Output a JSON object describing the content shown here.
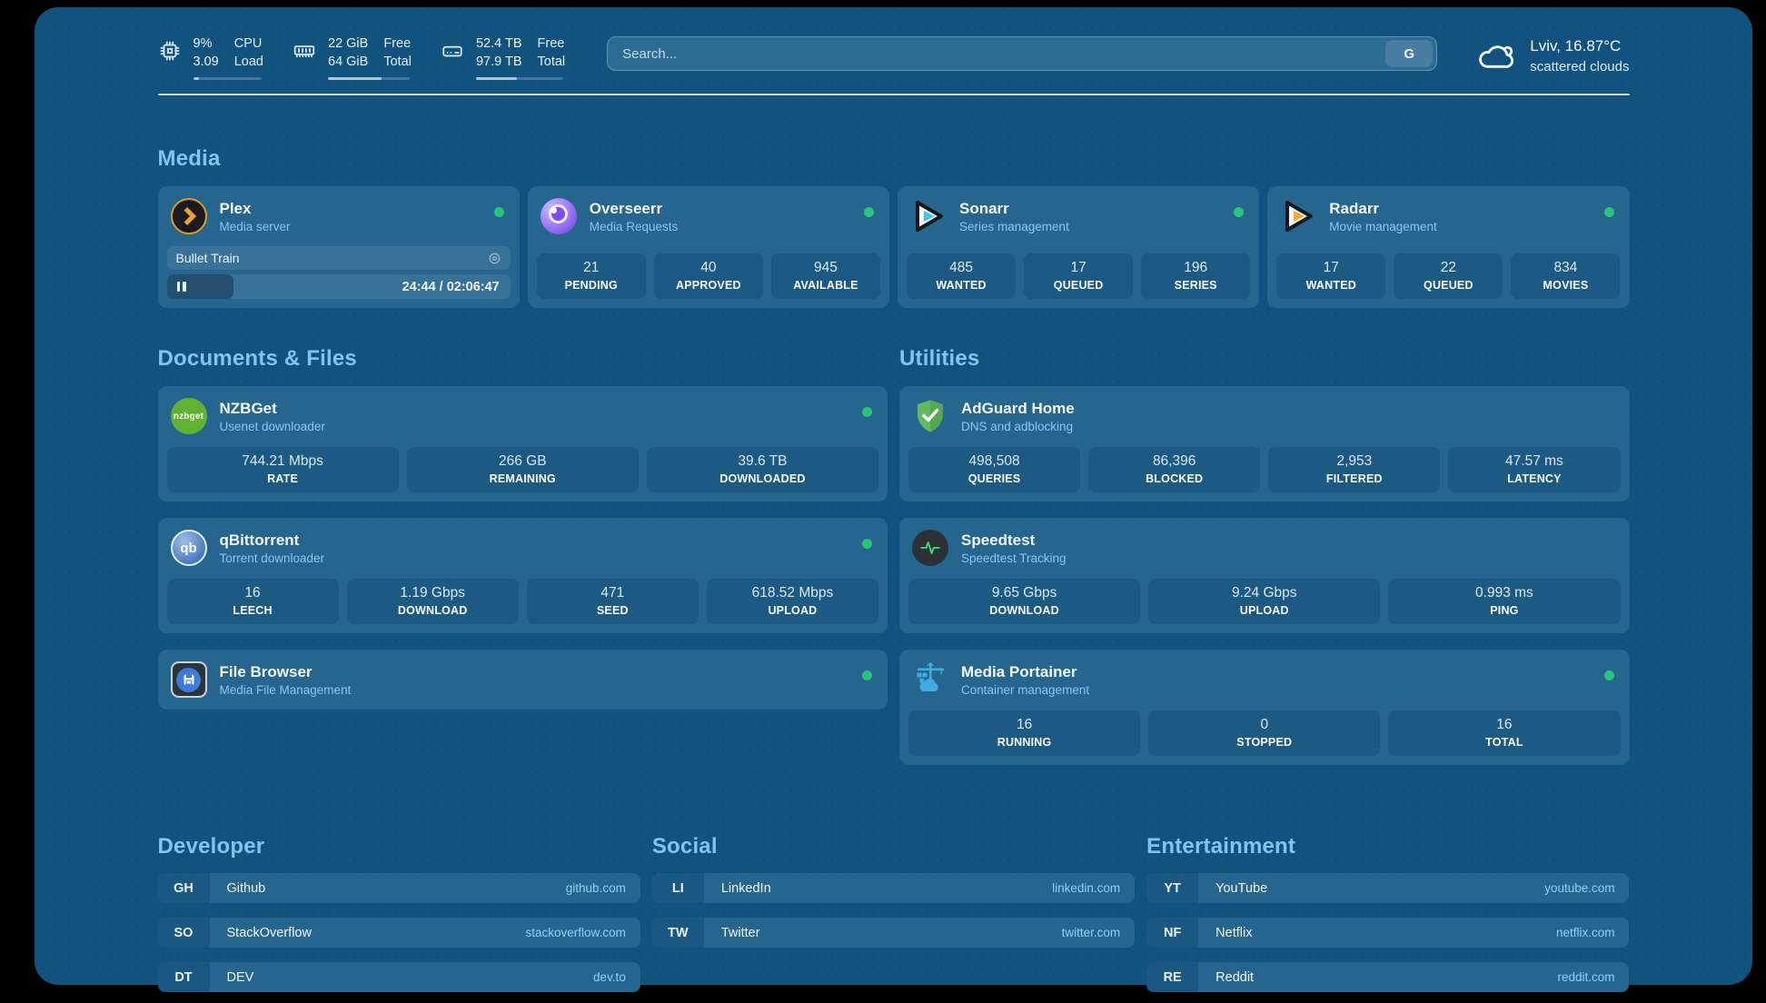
{
  "colors": {
    "page_bg": "#11537E",
    "card_bg": "#25658E",
    "stat_bg": "#1C5A83",
    "accent_text": "#84C4EC",
    "status_online": "#27C47D"
  },
  "topbar": {
    "stats": [
      {
        "icon": "cpu-icon",
        "values": [
          "9%",
          "3.09"
        ],
        "labels": [
          "CPU",
          "Load"
        ],
        "progress_pct": 9
      },
      {
        "icon": "memory-icon",
        "values": [
          "22 GiB",
          "64 GiB"
        ],
        "labels": [
          "Free",
          "Total"
        ],
        "progress_pct": 65.6
      },
      {
        "icon": "disk-icon",
        "values": [
          "52.4 TB",
          "97.9 TB"
        ],
        "labels": [
          "Free",
          "Total"
        ],
        "progress_pct": 46.5
      }
    ],
    "search": {
      "placeholder": "Search...",
      "provider_label": "G"
    },
    "weather": {
      "icon": "cloud-icon",
      "title": "Lviv, 16.87°C",
      "subtitle": "scattered clouds"
    }
  },
  "sections": {
    "media": "Media",
    "documents": "Documents & Files",
    "utilities": "Utilities",
    "developer": "Developer",
    "social": "Social",
    "entertainment": "Entertainment"
  },
  "apps": {
    "plex": {
      "name": "Plex",
      "description": "Media server",
      "status": "online",
      "player": {
        "title": "Bullet Train",
        "elapsed": "24:44",
        "separator": "/",
        "duration": "02:06:47",
        "progress_pct": 19.5
      }
    },
    "overseerr": {
      "name": "Overseerr",
      "description": "Media Requests",
      "status": "online",
      "stats": [
        {
          "value": "21",
          "label": "PENDING"
        },
        {
          "value": "40",
          "label": "APPROVED"
        },
        {
          "value": "945",
          "label": "AVAILABLE"
        }
      ]
    },
    "sonarr": {
      "name": "Sonarr",
      "description": "Series management",
      "status": "online",
      "stats": [
        {
          "value": "485",
          "label": "WANTED"
        },
        {
          "value": "17",
          "label": "QUEUED"
        },
        {
          "value": "196",
          "label": "SERIES"
        }
      ]
    },
    "radarr": {
      "name": "Radarr",
      "description": "Movie management",
      "status": "online",
      "stats": [
        {
          "value": "17",
          "label": "WANTED"
        },
        {
          "value": "22",
          "label": "QUEUED"
        },
        {
          "value": "834",
          "label": "MOVIES"
        }
      ]
    },
    "nzbget": {
      "name": "NZBGet",
      "description": "Usenet downloader",
      "status": "online",
      "icon_text": "nzbget",
      "stats": [
        {
          "value": "744.21 Mbps",
          "label": "RATE"
        },
        {
          "value": "266 GB",
          "label": "REMAINING"
        },
        {
          "value": "39.6 TB",
          "label": "DOWNLOADED"
        }
      ]
    },
    "qbittorrent": {
      "name": "qBittorrent",
      "description": "Torrent downloader",
      "status": "online",
      "icon_text": "qb",
      "stats": [
        {
          "value": "16",
          "label": "LEECH"
        },
        {
          "value": "1.19 Gbps",
          "label": "DOWNLOAD"
        },
        {
          "value": "471",
          "label": "SEED"
        },
        {
          "value": "618.52 Mbps",
          "label": "UPLOAD"
        }
      ]
    },
    "filebrowser": {
      "name": "File Browser",
      "description": "Media File Management",
      "status": "online"
    },
    "adguard": {
      "name": "AdGuard Home",
      "description": "DNS and adblocking",
      "stats": [
        {
          "value": "498,508",
          "label": "QUERIES"
        },
        {
          "value": "86,396",
          "label": "BLOCKED"
        },
        {
          "value": "2,953",
          "label": "FILTERED"
        },
        {
          "value": "47.57 ms",
          "label": "LATENCY"
        }
      ]
    },
    "speedtest": {
      "name": "Speedtest",
      "description": "Speedtest Tracking",
      "stats": [
        {
          "value": "9.65 Gbps",
          "label": "DOWNLOAD"
        },
        {
          "value": "9.24 Gbps",
          "label": "UPLOAD"
        },
        {
          "value": "0.993 ms",
          "label": "PING"
        }
      ]
    },
    "portainer": {
      "name": "Media Portainer",
      "description": "Container management",
      "status": "online",
      "stats": [
        {
          "value": "16",
          "label": "RUNNING"
        },
        {
          "value": "0",
          "label": "STOPPED"
        },
        {
          "value": "16",
          "label": "TOTAL"
        }
      ]
    }
  },
  "bookmarks": {
    "developer": [
      {
        "abbr": "GH",
        "name": "Github",
        "url": "github.com"
      },
      {
        "abbr": "SO",
        "name": "StackOverflow",
        "url": "stackoverflow.com"
      },
      {
        "abbr": "DT",
        "name": "DEV",
        "url": "dev.to"
      }
    ],
    "social": [
      {
        "abbr": "LI",
        "name": "LinkedIn",
        "url": "linkedin.com"
      },
      {
        "abbr": "TW",
        "name": "Twitter",
        "url": "twitter.com"
      }
    ],
    "entertainment": [
      {
        "abbr": "YT",
        "name": "YouTube",
        "url": "youtube.com"
      },
      {
        "abbr": "NF",
        "name": "Netflix",
        "url": "netflix.com"
      },
      {
        "abbr": "RE",
        "name": "Reddit",
        "url": "reddit.com"
      }
    ]
  }
}
